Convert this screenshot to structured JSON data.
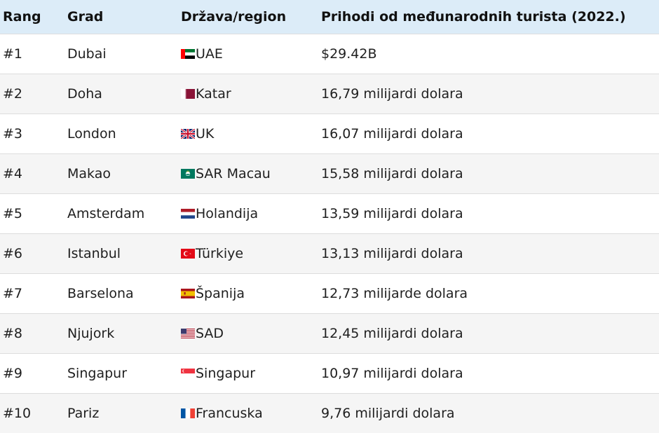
{
  "table": {
    "headers": [
      "Rang",
      "Grad",
      "Država/region",
      "Prihodi od međunarodnih turista (2022.)"
    ],
    "rows": [
      {
        "rank": "#1",
        "city": "Dubai",
        "flag": "uae-flag-icon",
        "country": "UAE",
        "revenue": "$29.42B"
      },
      {
        "rank": "#2",
        "city": "Doha",
        "flag": "qatar-flag-icon",
        "country": "Katar",
        "revenue": "16,79 milijardi dolara"
      },
      {
        "rank": "#3",
        "city": "London",
        "flag": "uk-flag-icon",
        "country": "UK",
        "revenue": "16,07 milijardi dolara"
      },
      {
        "rank": "#4",
        "city": "Makao",
        "flag": "macau-flag-icon",
        "country": "SAR Macau",
        "revenue": "15,58 milijardi dolara"
      },
      {
        "rank": "#5",
        "city": "Amsterdam",
        "flag": "netherlands-flag-icon",
        "country": "Holandija",
        "revenue": "13,59 milijardi dolara"
      },
      {
        "rank": "#6",
        "city": "Istanbul",
        "flag": "turkey-flag-icon",
        "country": "Türkiye",
        "revenue": "13,13 milijardi dolara"
      },
      {
        "rank": "#7",
        "city": "Barselona",
        "flag": "spain-flag-icon",
        "country": "Španija",
        "revenue": "12,73 milijarde dolara"
      },
      {
        "rank": "#8",
        "city": "Njujork",
        "flag": "usa-flag-icon",
        "country": "SAD",
        "revenue": "12,45 milijardi dolara"
      },
      {
        "rank": "#9",
        "city": "Singapur",
        "flag": "singapore-flag-icon",
        "country": "Singapur",
        "revenue": "10,97 milijardi dolara"
      },
      {
        "rank": "#10",
        "city": "Pariz",
        "flag": "france-flag-icon",
        "country": "Francuska",
        "revenue": "9,76 milijardi dolara"
      }
    ]
  },
  "colors": {
    "header_bg": "#dcecf8",
    "row_alt_bg": "#f5f5f5"
  }
}
